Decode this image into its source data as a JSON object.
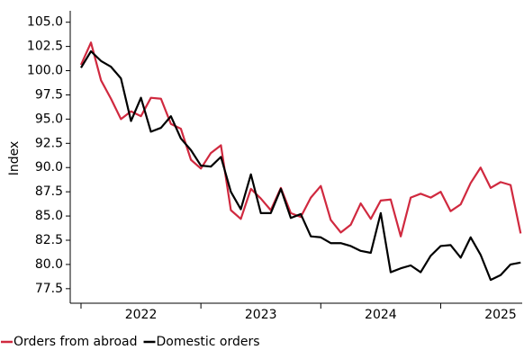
{
  "chart_data": {
    "type": "line",
    "y_label": "Index",
    "x": [
      2022,
      2022.083,
      2022.167,
      2022.25,
      2022.333,
      2022.417,
      2022.5,
      2022.583,
      2022.667,
      2022.75,
      2022.833,
      2022.917,
      2023,
      2023.083,
      2023.167,
      2023.25,
      2023.333,
      2023.417,
      2023.5,
      2023.583,
      2023.667,
      2023.75,
      2023.833,
      2023.917,
      2024,
      2024.083,
      2024.167,
      2024.25,
      2024.333,
      2024.417,
      2024.5,
      2024.583,
      2024.667,
      2024.75,
      2024.833,
      2024.917,
      2025,
      2025.083,
      2025.167,
      2025.25,
      2025.333,
      2025.417,
      2025.5,
      2025.583,
      2025.667
    ],
    "series": [
      {
        "name": "Orders from abroad",
        "color": "#d0293f",
        "values": [
          100.6,
          102.9,
          99.0,
          97.1,
          95.0,
          95.8,
          95.3,
          97.2,
          97.1,
          94.5,
          94.0,
          90.8,
          89.9,
          91.5,
          92.3,
          85.6,
          84.7,
          87.8,
          86.8,
          85.6,
          87.9,
          85.3,
          84.9,
          86.9,
          88.1,
          84.6,
          83.3,
          84.1,
          86.3,
          84.7,
          86.6,
          86.7,
          82.9,
          86.9,
          87.3,
          86.9,
          87.5,
          85.5,
          86.2,
          88.4,
          90.0,
          87.9,
          88.5,
          88.2,
          83.2
        ]
      },
      {
        "name": "Domestic orders",
        "color": "#000000",
        "values": [
          100.3,
          102.0,
          101.0,
          100.4,
          99.2,
          94.8,
          97.2,
          93.7,
          94.1,
          95.3,
          93.0,
          91.8,
          90.2,
          90.1,
          91.1,
          87.5,
          85.7,
          89.3,
          85.3,
          85.3,
          87.8,
          84.8,
          85.2,
          82.9,
          82.8,
          82.2,
          82.2,
          81.9,
          81.4,
          81.2,
          85.3,
          79.2,
          79.6,
          79.9,
          79.2,
          80.9,
          81.9,
          82.0,
          80.7,
          82.8,
          81.0,
          78.4,
          78.9,
          80.0,
          80.2
        ]
      }
    ],
    "xlim": [
      2021.91,
      2025.68
    ],
    "xticks": [
      {
        "value": 2022.5,
        "label": "2022"
      },
      {
        "value": 2023.5,
        "label": "2023"
      },
      {
        "value": 2024.5,
        "label": "2024"
      },
      {
        "value": 2025.5,
        "label": "2025"
      }
    ],
    "x_minor_ticks": [
      2022,
      2023,
      2024,
      2025
    ],
    "ylim": [
      76,
      105.9
    ],
    "yticks": [
      {
        "value": 77.5,
        "label": "77.5"
      },
      {
        "value": 80,
        "label": "80.0"
      },
      {
        "value": 82.5,
        "label": "82.5"
      },
      {
        "value": 85,
        "label": "85.0"
      },
      {
        "value": 87.5,
        "label": "87.5"
      },
      {
        "value": 90,
        "label": "90.0"
      },
      {
        "value": 92.5,
        "label": "92.5"
      },
      {
        "value": 95,
        "label": "95.0"
      },
      {
        "value": 97.5,
        "label": "97.5"
      },
      {
        "value": 100,
        "label": "100.0"
      },
      {
        "value": 102.5,
        "label": "102.5"
      },
      {
        "value": 105,
        "label": "105.0"
      }
    ],
    "grid": false,
    "legend": "bottom-left"
  }
}
